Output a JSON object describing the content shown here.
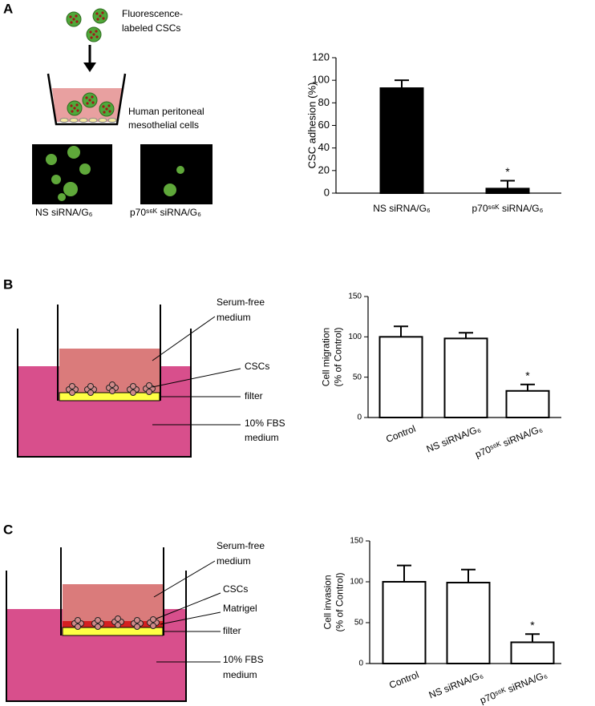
{
  "panel_labels": [
    "A",
    "B",
    "C"
  ],
  "diagram_a": {
    "cells_label": [
      "Fluorescence-",
      "labeled CSCs"
    ],
    "layer_label": [
      "Human peritoneal",
      "mesothelial cells"
    ],
    "image_labels": [
      "NS siRNA/G₆",
      "p70ˢ⁶ᴷ siRNA/G₆"
    ]
  },
  "diagram_b": {
    "medium_top": [
      "Serum-free",
      "medium"
    ],
    "cells": "CSCs",
    "filter": "filter",
    "medium_bottom": [
      "10% FBS",
      "medium"
    ]
  },
  "diagram_c": {
    "medium_top": [
      "Serum-free",
      "medium"
    ],
    "cells": "CSCs",
    "matrigel": "Matrigel",
    "filter": "filter",
    "medium_bottom": [
      "10% FBS",
      "medium"
    ]
  },
  "chart_data": [
    {
      "type": "bar",
      "ylabel": [
        "CSC adhesion (%)"
      ],
      "categories": [
        "NS siRNA/G₆",
        "p70ˢ⁶ᴷ siRNA/G₆"
      ],
      "values": [
        93,
        4
      ],
      "errors": [
        7,
        7
      ],
      "significance": [
        null,
        "*"
      ],
      "color": "#000000",
      "edgecolor": "#000000",
      "ylim": [
        0,
        120
      ],
      "yticks": [
        0,
        20,
        40,
        60,
        80,
        100,
        120
      ]
    },
    {
      "type": "bar",
      "ylabel": [
        "Cell migration",
        "(% of Control)"
      ],
      "categories": [
        "Control",
        "NS siRNA/G₆",
        "p70ˢ⁶ᴷ siRNA/G₆"
      ],
      "values": [
        100,
        98,
        33
      ],
      "errors": [
        13,
        7,
        8
      ],
      "significance": [
        null,
        null,
        "*"
      ],
      "color": "#ffffff",
      "edgecolor": "#000000",
      "ylim": [
        0,
        150
      ],
      "yticks": [
        0,
        50,
        100,
        150
      ]
    },
    {
      "type": "bar",
      "ylabel": [
        "Cell invasion",
        "(% of Control)"
      ],
      "categories": [
        "Control",
        "NS siRNA/G₆",
        "p70ˢ⁶ᴷ siRNA/G₆"
      ],
      "values": [
        100,
        99,
        26
      ],
      "errors": [
        20,
        16,
        10
      ],
      "significance": [
        null,
        null,
        "*"
      ],
      "color": "#ffffff",
      "edgecolor": "#000000",
      "ylim": [
        0,
        150
      ],
      "yticks": [
        0,
        50,
        100,
        150
      ]
    }
  ]
}
